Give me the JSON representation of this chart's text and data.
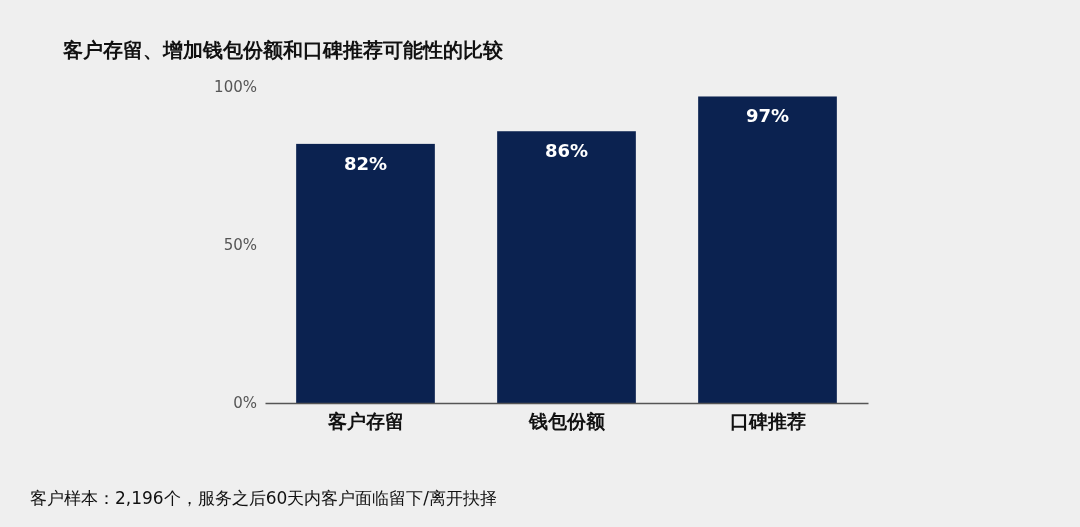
{
  "chart_data": {
    "type": "bar",
    "title": "客户存留、增加钱包份额和口碑推荐可能性的比较",
    "categories": [
      "客户存留",
      "钱包份额",
      "口碑推荐"
    ],
    "values": [
      82,
      86,
      97
    ],
    "color": "#0b2250",
    "value_labels": [
      "82%",
      "86%",
      "97%"
    ],
    "ylim": [
      0,
      100
    ],
    "yticks": [
      {
        "value": 0,
        "label": "0%"
      },
      {
        "value": 50,
        "label": "50%"
      },
      {
        "value": 100,
        "label": "100%"
      }
    ],
    "grid": false,
    "annotations": [
      "客户样本：2,196个，服务之后60天内客户面临留下/离开抉择"
    ]
  }
}
